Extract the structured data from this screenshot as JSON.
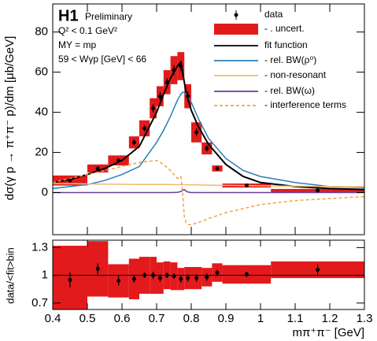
{
  "chart_data": [
    {
      "type": "spectrum",
      "ylabel": "dσ(γ p → π⁺π⁻ p)/dm [μb/GeV]",
      "title": "H1",
      "subtitle": "Preliminary",
      "annotations": [
        "Q² < 0.1 GeV²",
        "MY = mp",
        "59 < Wγp [GeV] < 66"
      ],
      "xlim": [
        0.4,
        1.3
      ],
      "ylim": [
        -21,
        94
      ],
      "yticks": [
        0,
        20,
        40,
        60,
        80
      ],
      "points": {
        "name": "data",
        "color": "#000000",
        "x": [
          0.45,
          0.53,
          0.59,
          0.635,
          0.665,
          0.69,
          0.71,
          0.73,
          0.75,
          0.77,
          0.79,
          0.815,
          0.845,
          0.875,
          0.96,
          1.165
        ],
        "values": [
          6,
          12,
          16,
          25,
          32,
          42,
          48,
          55,
          61,
          63,
          48,
          30,
          22,
          12,
          3.5,
          1
        ],
        "errors": [
          1,
          1,
          1,
          1.5,
          1.5,
          2,
          2,
          2,
          2.5,
          2.5,
          2.5,
          2,
          1.5,
          1,
          0.5,
          0.3
        ]
      },
      "uncert": {
        "name": "- . uncert.",
        "color": "#e31a1c",
        "bins": [
          0.4,
          0.5,
          0.56,
          0.62,
          0.65,
          0.68,
          0.7,
          0.72,
          0.74,
          0.76,
          0.78,
          0.8,
          0.83,
          0.86,
          0.89,
          1.03,
          1.3
        ],
        "errors": [
          2.5,
          2,
          2.5,
          3,
          4,
          5,
          5,
          6,
          7,
          7,
          6,
          5,
          3,
          1.5,
          1,
          0.8
        ]
      },
      "curves": {
        "x": [
          0.4,
          0.45,
          0.5,
          0.55,
          0.6,
          0.65,
          0.7,
          0.72,
          0.74,
          0.76,
          0.77,
          0.775,
          0.78,
          0.785,
          0.79,
          0.8,
          0.82,
          0.85,
          0.9,
          0.95,
          1.0,
          1.1,
          1.2,
          1.3
        ],
        "series": [
          {
            "name": "fit function",
            "color": "#000000",
            "dash": false,
            "values": [
              5,
              6.5,
              9,
              12,
              16,
              23,
              40,
              49,
              57,
              63,
              65,
              60,
              55,
              50,
              47,
              41,
              33,
              24,
              14,
              8,
              5,
              3,
              2,
              1.5
            ]
          },
          {
            "name": "- rel. BW(ρ⁰)",
            "color": "#2a7fb8",
            "dash": false,
            "values": [
              2,
              3,
              4,
              6,
              9,
              13,
              25,
              31,
              38,
              46,
              49,
              50,
              50,
              49,
              48,
              45,
              37,
              27,
              17,
              11,
              8,
              5,
              3,
              2.5
            ]
          },
          {
            "name": "- non-resonant",
            "color": "#f5b971",
            "dash": false,
            "values": [
              4.5,
              4.4,
              4.3,
              4.2,
              4.1,
              4,
              4,
              4,
              4,
              3.9,
              3.9,
              3.9,
              3.9,
              3.9,
              3.9,
              3.8,
              3.8,
              3.7,
              3.6,
              3.5,
              3.4,
              3.2,
              3,
              2.9
            ]
          },
          {
            "name": "- rel. BW(ω)",
            "color": "#6a3d9a",
            "dash": false,
            "values": [
              0,
              0,
              0,
              0,
              0,
              0,
              0,
              0,
              0,
              0.1,
              0.5,
              1.2,
              1.5,
              0.8,
              0.3,
              0,
              0,
              0,
              0,
              0,
              0,
              0,
              0,
              0
            ]
          },
          {
            "name": "- interference terms",
            "color": "#f5a04a",
            "dash": true,
            "values": [
              5,
              7,
              9,
              11,
              13,
              15,
              16,
              14,
              11,
              7,
              8,
              0,
              -12,
              -15,
              -16,
              -16,
              -15,
              -13,
              -10,
              -8,
              -6,
              -4,
              -3,
              -2
            ]
          }
        ]
      }
    },
    {
      "type": "ratio",
      "ylabel": "data/<fit>bin",
      "xlabel": "mπ⁺π⁻ [GeV]",
      "xlim": [
        0.4,
        1.3
      ],
      "ylim": [
        0.63,
        1.38
      ],
      "xticks": [
        0.4,
        0.5,
        0.6,
        0.7,
        0.8,
        0.9,
        1,
        1.1,
        1.2,
        1.3
      ],
      "yticks": [
        0.7,
        1,
        1.3
      ],
      "values": [
        0.95,
        1.07,
        0.94,
        0.96,
        1.0,
        1.0,
        0.97,
        1.0,
        0.99,
        0.96,
        0.97,
        0.97,
        0.98,
        1.03,
        1.01,
        1.06
      ],
      "errors": [
        0.08,
        0.06,
        0.05,
        0.04,
        0.03,
        0.04,
        0.04,
        0.03,
        0.03,
        0.04,
        0.04,
        0.04,
        0.04,
        0.03,
        0.03,
        0.06
      ],
      "uncert_errors": [
        0.37,
        0.3,
        0.18,
        0.22,
        0.2,
        0.2,
        0.17,
        0.15,
        0.15,
        0.12,
        0.12,
        0.12,
        0.1,
        0.1,
        0.1,
        0.09
      ]
    }
  ]
}
